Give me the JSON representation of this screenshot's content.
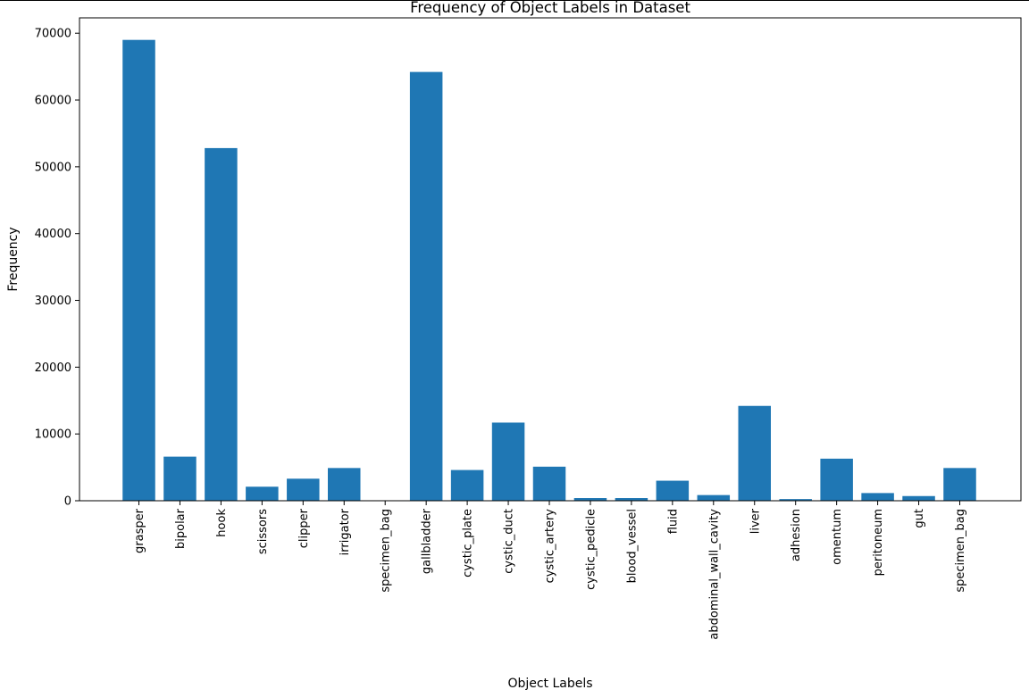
{
  "chart_data": {
    "type": "bar",
    "title": "Frequency of Object Labels in Dataset",
    "xlabel": "Object Labels",
    "ylabel": "Frequency",
    "ylim": [
      0,
      72300
    ],
    "yticks": [
      0,
      10000,
      20000,
      30000,
      40000,
      50000,
      60000,
      70000
    ],
    "grid": false,
    "categories": [
      "grasper",
      "bipolar",
      "hook",
      "scissors",
      "clipper",
      "irrigator",
      "specimen_bag",
      "gallbladder",
      "cystic_plate",
      "cystic_duct",
      "cystic_artery",
      "cystic_pedicle",
      "blood_vessel",
      "fluid",
      "abdominal_wall_cavity",
      "liver",
      "adhesion",
      "omentum",
      "peritoneum",
      "gut",
      "specimen_bag"
    ],
    "values": [
      69000,
      6600,
      52800,
      2100,
      3300,
      4900,
      0,
      64200,
      4600,
      11700,
      5100,
      400,
      400,
      3000,
      850,
      14200,
      250,
      6300,
      1150,
      700,
      4900
    ],
    "bar_color": "#1f77b4"
  }
}
